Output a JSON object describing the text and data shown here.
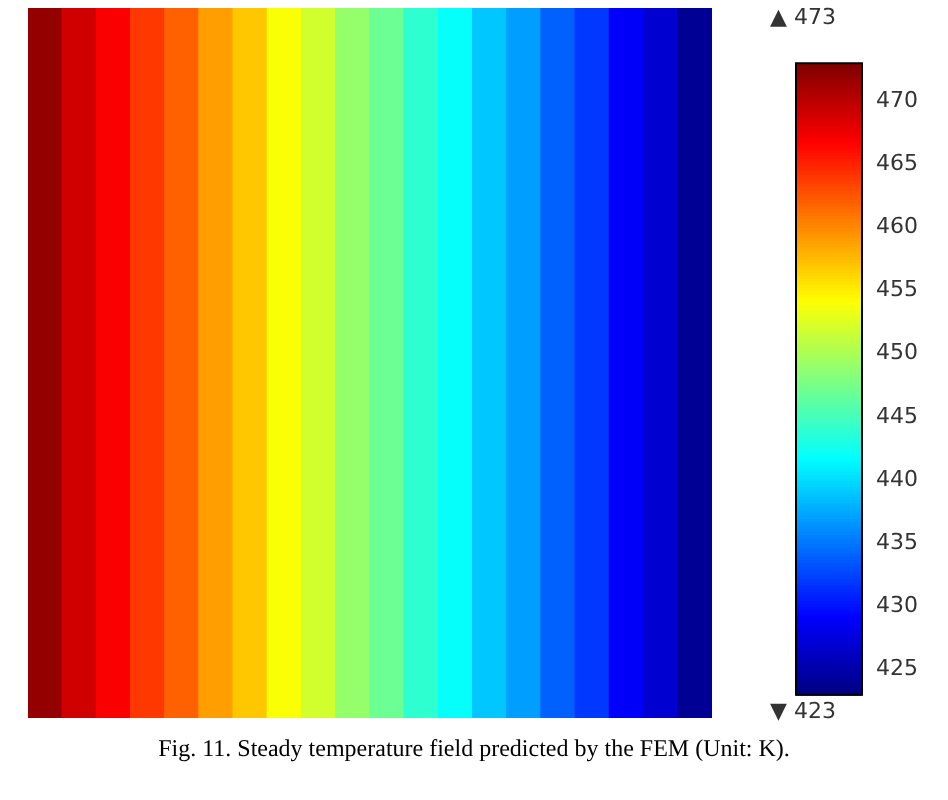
{
  "chart_data": {
    "type": "heatmap",
    "categories": [
      null,
      null,
      null,
      null,
      null,
      null,
      null,
      null,
      null,
      null,
      null,
      null,
      null,
      null,
      null,
      null,
      null,
      null,
      null,
      null
    ],
    "y_categories": [
      null
    ],
    "cells": [
      [
        472,
        469,
        467,
        464,
        462,
        459,
        457,
        454,
        452,
        449,
        447,
        444,
        442,
        439,
        437,
        434,
        432,
        429,
        427,
        424
      ]
    ],
    "clim": [
      423,
      473
    ],
    "cticks": [
      425,
      430,
      435,
      440,
      445,
      450,
      455,
      460,
      465,
      470
    ],
    "annotations": [
      "▲ 473",
      "▼ 423",
      "Fig. 11. Steady temperature field predicted by the FEM (Unit: K)."
    ]
  }
}
